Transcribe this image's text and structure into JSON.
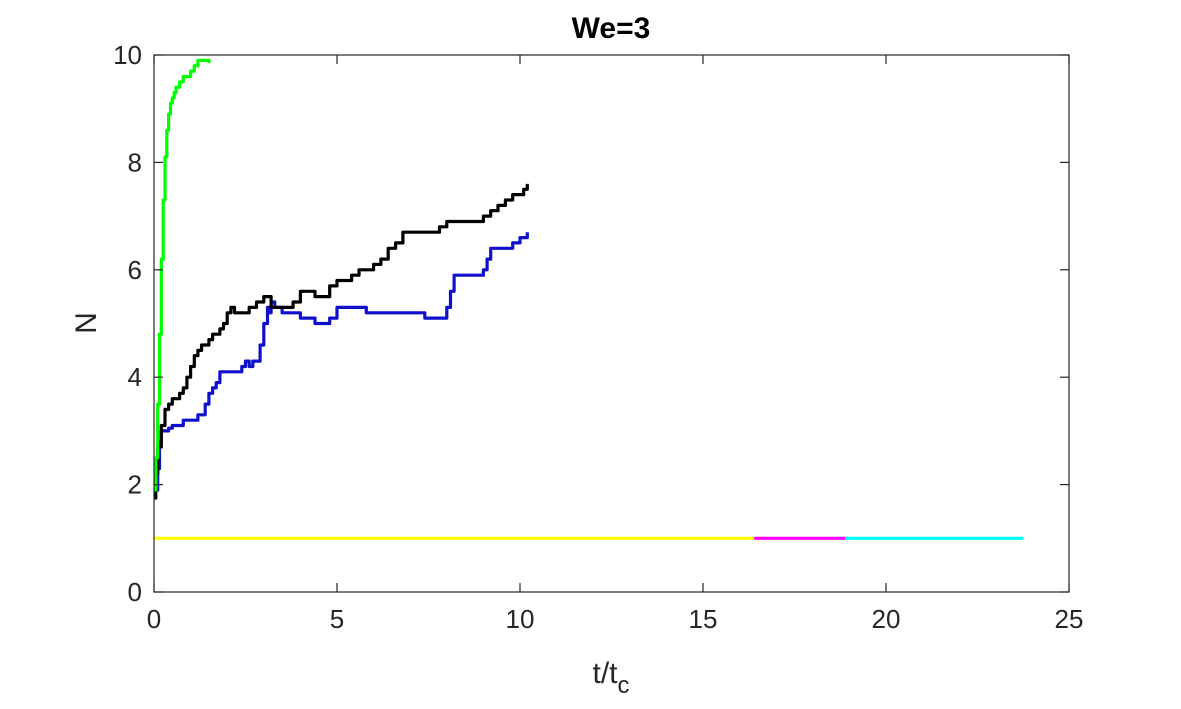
{
  "chart_data": {
    "type": "line",
    "title": "We=3",
    "xlabel_main": "t/t",
    "xlabel_sub": "c",
    "ylabel": "N",
    "xlim": [
      0,
      25
    ],
    "ylim": [
      0,
      10
    ],
    "x_ticks": [
      0,
      5,
      10,
      15,
      20,
      25
    ],
    "y_ticks": [
      0,
      2,
      4,
      6,
      8,
      10
    ],
    "grid": false,
    "box": true,
    "series": [
      {
        "color": "#ffff00",
        "x": [
          0,
          16.4
        ],
        "y": [
          1,
          1
        ]
      },
      {
        "color": "#ff00ff",
        "x": [
          16.4,
          18.9
        ],
        "y": [
          1,
          1
        ]
      },
      {
        "color": "#00ffff",
        "x": [
          18.9,
          23.75
        ],
        "y": [
          1,
          1
        ]
      },
      {
        "color": "#1010cc",
        "x": [
          0,
          0.1,
          0.15,
          0.2,
          0.25,
          0.3,
          0.4,
          0.5,
          0.6,
          0.8,
          1.0,
          1.2,
          1.4,
          1.5,
          1.6,
          1.7,
          1.8,
          1.9,
          2.0,
          2.2,
          2.4,
          2.5,
          2.6,
          2.7,
          2.8,
          2.9,
          3.0,
          3.1,
          3.15,
          3.2,
          3.3,
          3.5,
          3.8,
          4.0,
          4.2,
          4.4,
          4.6,
          4.8,
          5.0,
          5.2,
          5.4,
          5.6,
          5.8,
          6.0,
          6.2,
          6.4,
          6.6,
          6.8,
          7.0,
          7.2,
          7.4,
          7.6,
          7.8,
          8.0,
          8.1,
          8.2,
          8.3,
          8.5,
          8.8,
          9.0,
          9.1,
          9.2,
          9.4,
          9.6,
          9.8,
          10.0,
          10.2
        ],
        "y": [
          1.9,
          2.3,
          2.8,
          3.0,
          3.0,
          3.0,
          3.05,
          3.1,
          3.1,
          3.2,
          3.2,
          3.3,
          3.5,
          3.7,
          3.8,
          3.9,
          4.1,
          4.1,
          4.1,
          4.1,
          4.2,
          4.3,
          4.2,
          4.3,
          4.3,
          4.6,
          5.0,
          5.3,
          5.2,
          5.4,
          5.3,
          5.2,
          5.2,
          5.1,
          5.1,
          5.0,
          5.0,
          5.1,
          5.3,
          5.3,
          5.3,
          5.3,
          5.2,
          5.2,
          5.2,
          5.2,
          5.2,
          5.2,
          5.2,
          5.2,
          5.1,
          5.1,
          5.1,
          5.3,
          5.6,
          5.9,
          5.9,
          5.9,
          5.9,
          6.0,
          6.2,
          6.4,
          6.4,
          6.4,
          6.5,
          6.6,
          6.7
        ]
      },
      {
        "color": "#000000",
        "x": [
          0,
          0.05,
          0.1,
          0.2,
          0.3,
          0.4,
          0.5,
          0.6,
          0.7,
          0.8,
          0.9,
          1.0,
          1.1,
          1.2,
          1.3,
          1.4,
          1.5,
          1.6,
          1.7,
          1.8,
          1.9,
          2.0,
          2.1,
          2.2,
          2.4,
          2.6,
          2.8,
          3.0,
          3.2,
          3.4,
          3.6,
          3.8,
          4.0,
          4.2,
          4.4,
          4.6,
          4.8,
          5.0,
          5.2,
          5.4,
          5.6,
          5.8,
          6.0,
          6.2,
          6.4,
          6.6,
          6.8,
          7.0,
          7.2,
          7.4,
          7.6,
          7.8,
          8.0,
          8.2,
          8.4,
          8.6,
          8.8,
          9.0,
          9.2,
          9.4,
          9.6,
          9.8,
          10.0,
          10.1,
          10.2
        ],
        "y": [
          1.75,
          2.2,
          2.7,
          3.1,
          3.4,
          3.5,
          3.6,
          3.6,
          3.7,
          3.8,
          4.0,
          4.2,
          4.4,
          4.5,
          4.6,
          4.6,
          4.7,
          4.8,
          4.8,
          4.9,
          5.0,
          5.2,
          5.3,
          5.2,
          5.2,
          5.3,
          5.4,
          5.5,
          5.3,
          5.3,
          5.3,
          5.4,
          5.6,
          5.6,
          5.5,
          5.5,
          5.7,
          5.8,
          5.8,
          5.9,
          6.0,
          6.0,
          6.1,
          6.2,
          6.4,
          6.5,
          6.7,
          6.7,
          6.7,
          6.7,
          6.7,
          6.8,
          6.9,
          6.9,
          6.9,
          6.9,
          6.9,
          7.0,
          7.1,
          7.2,
          7.3,
          7.4,
          7.4,
          7.5,
          7.6
        ]
      },
      {
        "color": "#00ff00",
        "x": [
          0,
          0.05,
          0.1,
          0.15,
          0.2,
          0.25,
          0.3,
          0.35,
          0.4,
          0.45,
          0.5,
          0.55,
          0.6,
          0.7,
          0.8,
          0.9,
          1.0,
          1.1,
          1.2,
          1.3,
          1.4,
          1.5
        ],
        "y": [
          1.9,
          2.5,
          3.5,
          4.8,
          6.2,
          7.3,
          8.1,
          8.6,
          8.9,
          9.1,
          9.2,
          9.3,
          9.4,
          9.5,
          9.6,
          9.6,
          9.7,
          9.8,
          9.9,
          9.9,
          9.9,
          9.85
        ]
      }
    ]
  }
}
